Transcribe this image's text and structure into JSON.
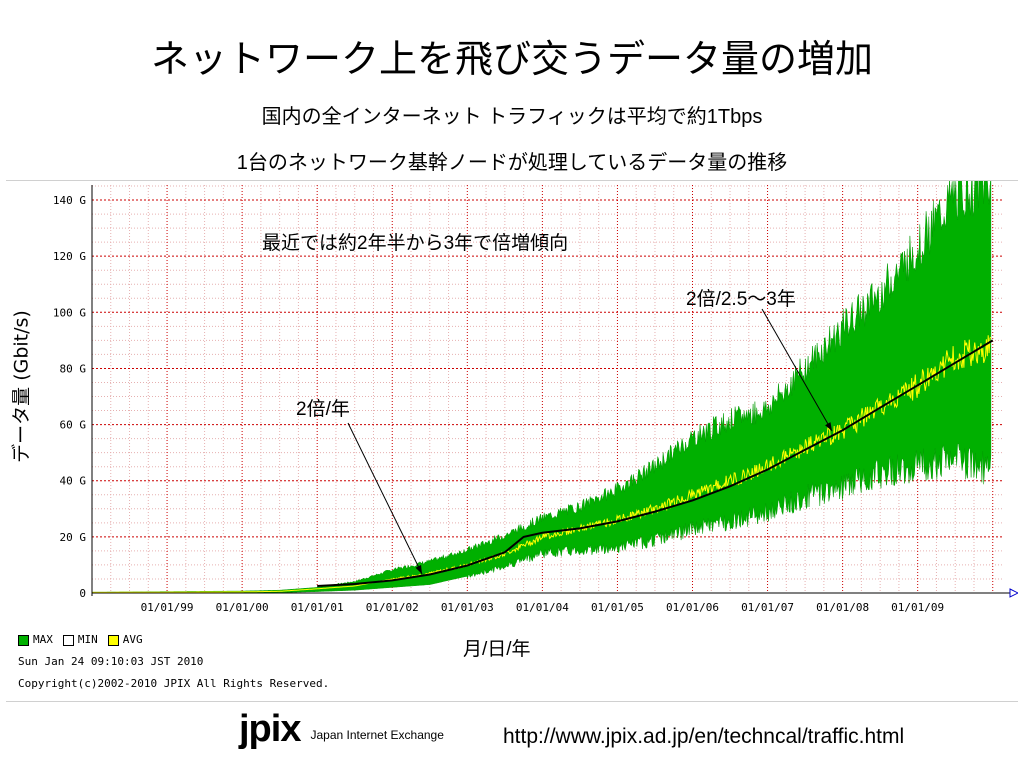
{
  "slide": {
    "title": "ネットワーク上を飛び交うデータ量の増加",
    "subtitle1": "国内の全インターネット トラフィックは平均で約1Tbps",
    "subtitle2": "1台のネットワーク基幹ノードが処理しているデータ量の推移",
    "url": "http://www.jpix.ad.jp/en/techncal/traffic.html",
    "logo_mark": "jpix",
    "logo_text": "Japan Internet Exchange"
  },
  "chart_labels": {
    "ylabel": "データ量 (Gbit/s)",
    "xunit": "月/日/年",
    "annotation_main": "最近では約2年半から3年で倍増傾向",
    "annotation_1": "2倍/2.5～3年",
    "annotation_2": "2倍/年"
  },
  "legend": {
    "max_label": "MAX",
    "min_label": "MIN",
    "avg_label": "AVG",
    "timestamp": "Sun Jan 24 09:10:03 JST 2010",
    "copyright": "Copyright(c)2002-2010 JPIX All Rights Reserved."
  },
  "colors": {
    "max": "#00b000",
    "min": "#ffffff",
    "avg": "#ffff00",
    "trend": "#000000",
    "grid": "#cc0000"
  },
  "chart_data": {
    "type": "area",
    "xlabel": "月/日/年",
    "ylabel": "データ量 (Gbit/s)",
    "ylim": [
      0,
      145
    ],
    "y_ticks": [
      0,
      20,
      40,
      60,
      80,
      100,
      120,
      140
    ],
    "y_tick_labels": [
      "0",
      "20 G",
      "40 G",
      "60 G",
      "80 G",
      "100 G",
      "120 G",
      "140 G"
    ],
    "x_tick_labels": [
      "01/01/99",
      "01/01/00",
      "01/01/01",
      "01/01/02",
      "01/01/03",
      "01/01/04",
      "01/01/05",
      "01/01/06",
      "01/01/07",
      "01/01/08",
      "01/01/09"
    ],
    "grid": true,
    "series": [
      {
        "name": "MAX",
        "x": [
          1998.0,
          1999.0,
          2000.0,
          2000.5,
          2001.0,
          2001.5,
          2002.0,
          2002.5,
          2003.0,
          2003.5,
          2004.0,
          2004.5,
          2005.0,
          2005.5,
          2006.0,
          2006.5,
          2007.0,
          2007.5,
          2008.0,
          2008.5,
          2009.0,
          2009.5,
          2010.0
        ],
        "values": [
          0.3,
          0.5,
          0.7,
          1.0,
          2,
          4,
          8,
          11,
          15,
          20,
          26,
          30,
          36,
          44,
          54,
          60,
          64,
          78,
          92,
          104,
          120,
          138,
          142
        ]
      },
      {
        "name": "MIN",
        "x": [
          1998.0,
          1999.0,
          2000.0,
          2000.5,
          2001.0,
          2001.5,
          2002.0,
          2002.5,
          2003.0,
          2003.5,
          2004.0,
          2004.5,
          2005.0,
          2005.5,
          2006.0,
          2006.5,
          2007.0,
          2007.5,
          2008.0,
          2008.5,
          2009.0,
          2009.5,
          2010.0
        ],
        "values": [
          0,
          0.1,
          0.1,
          0.2,
          0.5,
          1,
          2,
          3,
          6,
          10,
          15,
          16,
          17,
          20,
          24,
          27,
          30,
          36,
          40,
          45,
          48,
          50,
          46
        ]
      },
      {
        "name": "AVG",
        "x": [
          1998.0,
          1999.0,
          2000.0,
          2000.5,
          2001.0,
          2001.5,
          2002.0,
          2002.5,
          2003.0,
          2003.5,
          2004.0,
          2004.5,
          2005.0,
          2005.5,
          2006.0,
          2006.5,
          2007.0,
          2007.5,
          2008.0,
          2008.5,
          2009.0,
          2009.5,
          2010.0
        ],
        "values": [
          0.2,
          0.3,
          0.4,
          0.6,
          1.5,
          2.5,
          5,
          7,
          10,
          14,
          20,
          23,
          26,
          30,
          35,
          40,
          45,
          52,
          58,
          66,
          74,
          84,
          88
        ]
      }
    ],
    "trend": {
      "x": [
        2001.0,
        2001.5,
        2002.0,
        2002.5,
        2003.0,
        2003.5,
        2003.75,
        2004.0,
        2004.5,
        2005.0,
        2005.5,
        2006.0,
        2006.5,
        2007.0,
        2007.5,
        2008.0,
        2008.5,
        2009.0,
        2009.5,
        2010.0
      ],
      "values": [
        2.5,
        3.2,
        4.5,
        6.6,
        9.8,
        14.5,
        20,
        21.5,
        23,
        25.5,
        29,
        33,
        38,
        44,
        51,
        58,
        66,
        74,
        82,
        90
      ]
    }
  }
}
